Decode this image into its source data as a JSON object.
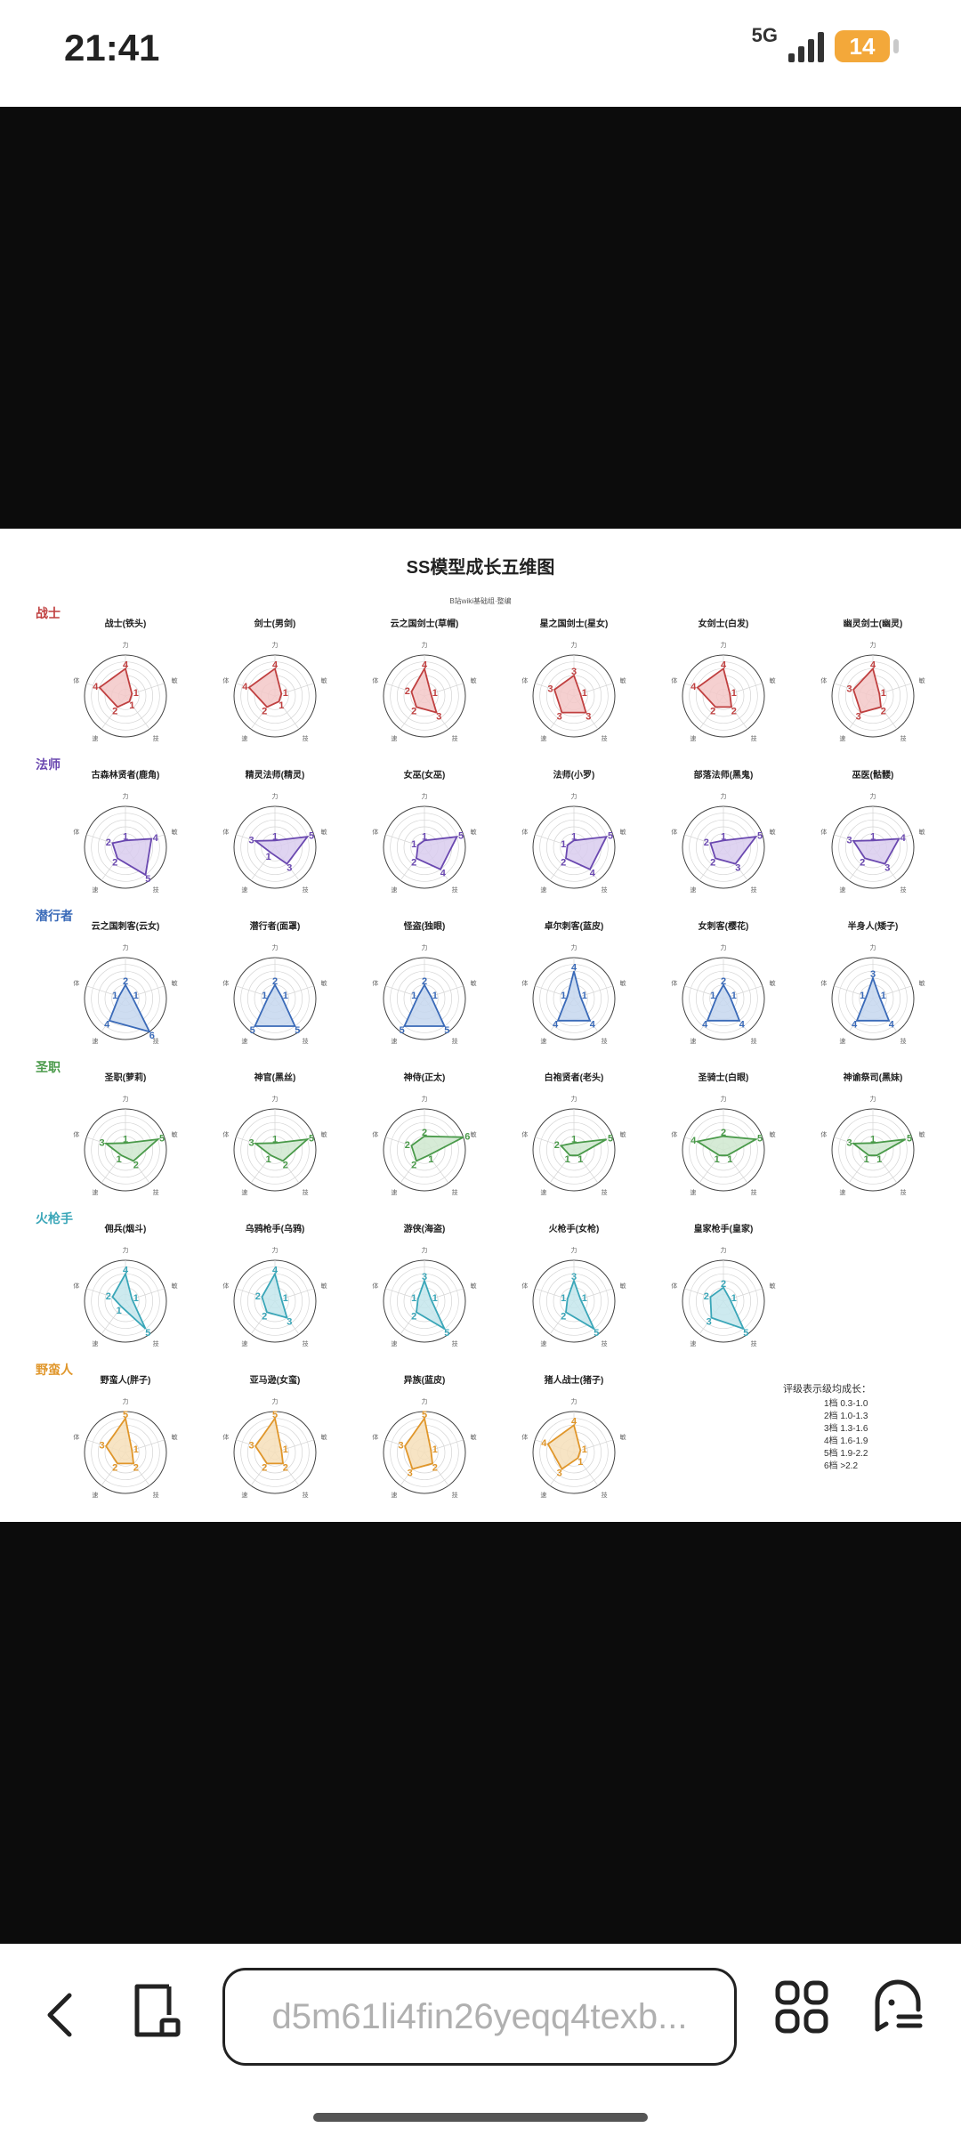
{
  "status": {
    "time": "21:41",
    "network": "5G",
    "battery": "14"
  },
  "doc": {
    "title": "SS模型成长五维图",
    "subtitle": "B站wiki基础组·整编",
    "axes": {
      "top": "力",
      "right": "敏",
      "bottom_right": "技",
      "bottom_left": "速",
      "left": "体"
    },
    "legend": {
      "title": "评级表示级均成长：",
      "lines": [
        "1档 0.3-1.0",
        "2档 1.0-1.3",
        "3档 1.3-1.6",
        "4档 1.6-1.9",
        "5档 1.9-2.2",
        "6档    >2.2"
      ]
    }
  },
  "classes": [
    {
      "name": "战士",
      "color": "#c04040",
      "fill": "#f3c8c8",
      "units": [
        {
          "label": "战士(铁头)",
          "v": [
            4,
            1,
            1,
            2,
            4
          ]
        },
        {
          "label": "剑士(男剑)",
          "v": [
            4,
            1,
            1,
            2,
            4
          ]
        },
        {
          "label": "云之国剑士(草帽)",
          "v": [
            4,
            1,
            3,
            2,
            2
          ]
        },
        {
          "label": "星之国剑士(星女)",
          "v": [
            3,
            1,
            3,
            3,
            3
          ]
        },
        {
          "label": "女剑士(白发)",
          "v": [
            4,
            1,
            2,
            2,
            4
          ]
        },
        {
          "label": "幽灵剑士(幽灵)",
          "v": [
            4,
            1,
            2,
            3,
            3
          ]
        }
      ]
    },
    {
      "name": "法师",
      "color": "#6a48b0",
      "fill": "#d9cdee",
      "units": [
        {
          "label": "古森林贤者(鹿角)",
          "v": [
            1,
            4,
            5,
            2,
            2
          ]
        },
        {
          "label": "精灵法师(精灵)",
          "v": [
            1,
            5,
            3,
            1,
            3
          ]
        },
        {
          "label": "女巫(女巫)",
          "v": [
            1,
            5,
            4,
            2,
            1
          ]
        },
        {
          "label": "法师(小罗)",
          "v": [
            1,
            5,
            4,
            2,
            1
          ]
        },
        {
          "label": "部落法师(黑鬼)",
          "v": [
            1,
            5,
            3,
            2,
            2
          ]
        },
        {
          "label": "巫医(骷髅)",
          "v": [
            1,
            4,
            3,
            2,
            3
          ]
        }
      ]
    },
    {
      "name": "潜行者",
      "color": "#3a6ab8",
      "fill": "#c6d7ef",
      "units": [
        {
          "label": "云之国刺客(云女)",
          "v": [
            2,
            1,
            6,
            4,
            1
          ]
        },
        {
          "label": "潜行者(面罩)",
          "v": [
            2,
            1,
            5,
            5,
            1
          ]
        },
        {
          "label": "怪盗(独眼)",
          "v": [
            2,
            1,
            5,
            5,
            1
          ]
        },
        {
          "label": "卓尔刺客(蓝皮)",
          "v": [
            4,
            1,
            4,
            4,
            1
          ]
        },
        {
          "label": "女刺客(樱花)",
          "v": [
            2,
            1,
            4,
            4,
            1
          ]
        },
        {
          "label": "半身人(矮子)",
          "v": [
            3,
            1,
            4,
            4,
            1
          ]
        }
      ]
    },
    {
      "name": "圣职",
      "color": "#4a9a4a",
      "fill": "#cfe7cf",
      "units": [
        {
          "label": "圣职(萝莉)",
          "v": [
            1,
            5,
            2,
            1,
            3
          ]
        },
        {
          "label": "神官(黑丝)",
          "v": [
            1,
            5,
            2,
            1,
            3
          ]
        },
        {
          "label": "神侍(正太)",
          "v": [
            2,
            6,
            1,
            2,
            2
          ]
        },
        {
          "label": "白袍贤者(老头)",
          "v": [
            1,
            5,
            1,
            1,
            2
          ]
        },
        {
          "label": "圣骑士(白眼)",
          "v": [
            2,
            5,
            1,
            1,
            4
          ]
        },
        {
          "label": "神谕祭司(黑妹)",
          "v": [
            1,
            5,
            1,
            1,
            3
          ]
        }
      ]
    },
    {
      "name": "火枪手",
      "color": "#3aa6b8",
      "fill": "#c4e6ec",
      "units": [
        {
          "label": "佣兵(烟斗)",
          "v": [
            4,
            1,
            5,
            1,
            2
          ]
        },
        {
          "label": "乌鸦枪手(乌鸦)",
          "v": [
            4,
            1,
            3,
            2,
            2
          ]
        },
        {
          "label": "游侠(海盗)",
          "v": [
            3,
            1,
            5,
            2,
            1
          ]
        },
        {
          "label": "火枪手(女枪)",
          "v": [
            3,
            1,
            5,
            2,
            1
          ]
        },
        {
          "label": "皇家枪手(皇家)",
          "v": [
            2,
            1,
            5,
            3,
            2
          ]
        }
      ]
    },
    {
      "name": "野蛮人",
      "color": "#e0962a",
      "fill": "#f6dfba",
      "units": [
        {
          "label": "野蛮人(胖子)",
          "v": [
            5,
            1,
            2,
            2,
            3
          ]
        },
        {
          "label": "亚马逊(女蛮)",
          "v": [
            5,
            1,
            2,
            2,
            3
          ]
        },
        {
          "label": "异族(蓝皮)",
          "v": [
            5,
            1,
            2,
            3,
            3
          ]
        },
        {
          "label": "猪人战士(猪子)",
          "v": [
            4,
            1,
            1,
            3,
            4
          ]
        }
      ]
    }
  ],
  "browser": {
    "url": "d5m61li4fin26yeqq4texb..."
  }
}
